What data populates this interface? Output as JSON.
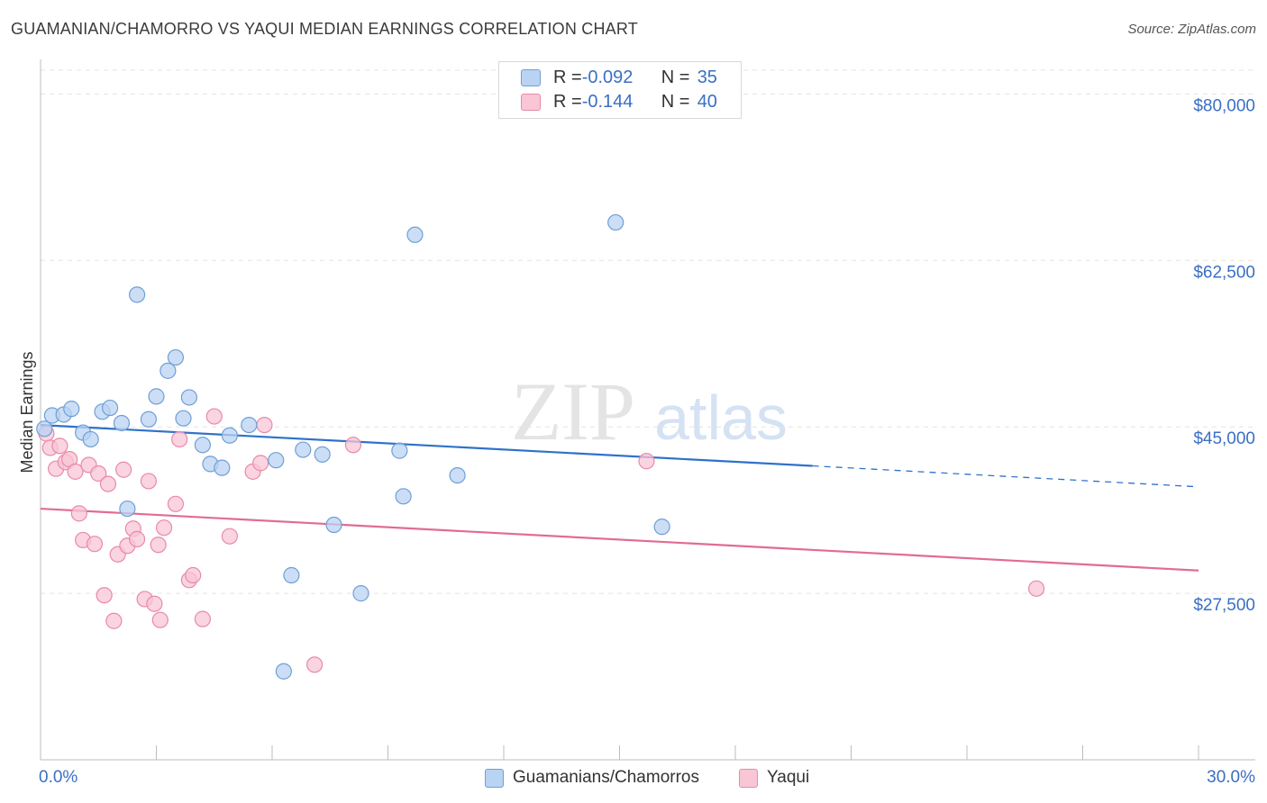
{
  "header": {
    "title": "GUAMANIAN/CHAMORRO VS YAQUI MEDIAN EARNINGS CORRELATION CHART",
    "source": "Source: ZipAtlas.com"
  },
  "watermark": {
    "zip": "ZIP",
    "atlas": "atlas"
  },
  "colors": {
    "blue_fill": "#b9d3f2",
    "blue_stroke": "#6f9fd8",
    "blue_line": "#2f72c9",
    "pink_fill": "#f8c6d5",
    "pink_stroke": "#e88aa8",
    "pink_line": "#e26b94",
    "axis_label": "#3a6fc4"
  },
  "legend": {
    "rows": [
      {
        "r_label": "R = ",
        "r_value": "-0.092",
        "n_label": "N = ",
        "n_value": "35"
      },
      {
        "r_label": "R = ",
        "r_value": "-0.144",
        "n_label": "N = ",
        "n_value": "40"
      }
    ],
    "bottom": [
      "Guamanians/Chamorros",
      "Yaqui"
    ]
  },
  "chart_data": {
    "type": "scatter",
    "title": "GUAMANIAN/CHAMORRO VS YAQUI MEDIAN EARNINGS CORRELATION CHART",
    "xlabel": "",
    "ylabel": "Median Earnings",
    "xlim": [
      0,
      30
    ],
    "ylim": [
      10000,
      82500
    ],
    "x_tick_labels": [
      "0.0%",
      "30.0%"
    ],
    "y_ticks": [
      27500,
      45000,
      62500,
      80000
    ],
    "y_tick_labels": [
      "$27,500",
      "$45,000",
      "$62,500",
      "$80,000"
    ],
    "grid": true,
    "series": [
      {
        "name": "Guamanians/Chamorros",
        "R": -0.092,
        "N": 35,
        "trend": {
          "x0": 0,
          "y0": 45200,
          "x1": 20,
          "y1": 40900,
          "dash_to_x": 30,
          "dash_to_y": 38700
        },
        "points": [
          [
            0.1,
            44800
          ],
          [
            0.3,
            46200
          ],
          [
            0.6,
            46300
          ],
          [
            0.8,
            46900
          ],
          [
            1.1,
            44400
          ],
          [
            1.3,
            43700
          ],
          [
            1.6,
            46600
          ],
          [
            1.8,
            47000
          ],
          [
            2.1,
            45400
          ],
          [
            2.25,
            36400
          ],
          [
            2.5,
            58900
          ],
          [
            2.8,
            45800
          ],
          [
            3.0,
            48200
          ],
          [
            3.3,
            50900
          ],
          [
            3.5,
            52300
          ],
          [
            3.7,
            45900
          ],
          [
            3.85,
            48100
          ],
          [
            4.2,
            43100
          ],
          [
            4.4,
            41100
          ],
          [
            4.7,
            40700
          ],
          [
            4.9,
            44100
          ],
          [
            5.4,
            45200
          ],
          [
            6.1,
            41500
          ],
          [
            6.5,
            29400
          ],
          [
            6.8,
            42600
          ],
          [
            7.3,
            42100
          ],
          [
            7.6,
            34700
          ],
          [
            8.3,
            27500
          ],
          [
            9.3,
            42500
          ],
          [
            9.4,
            37700
          ],
          [
            9.7,
            65200
          ],
          [
            10.8,
            39900
          ],
          [
            14.9,
            66500
          ],
          [
            16.1,
            34500
          ],
          [
            6.3,
            19300
          ]
        ]
      },
      {
        "name": "Yaqui",
        "R": -0.144,
        "N": 40,
        "trend": {
          "x0": 0,
          "y0": 36400,
          "x1": 30,
          "y1": 29900
        },
        "points": [
          [
            0.15,
            44300
          ],
          [
            0.25,
            42800
          ],
          [
            0.4,
            40600
          ],
          [
            0.5,
            43000
          ],
          [
            0.65,
            41300
          ],
          [
            0.75,
            41600
          ],
          [
            0.9,
            40300
          ],
          [
            1.0,
            35900
          ],
          [
            1.1,
            33100
          ],
          [
            1.25,
            41000
          ],
          [
            1.4,
            32700
          ],
          [
            1.5,
            40100
          ],
          [
            1.65,
            27300
          ],
          [
            1.75,
            39000
          ],
          [
            1.9,
            24600
          ],
          [
            2.0,
            31600
          ],
          [
            2.15,
            40500
          ],
          [
            2.25,
            32500
          ],
          [
            2.4,
            34300
          ],
          [
            2.5,
            33200
          ],
          [
            2.7,
            26900
          ],
          [
            2.8,
            39300
          ],
          [
            2.95,
            26400
          ],
          [
            3.05,
            32600
          ],
          [
            3.1,
            24700
          ],
          [
            3.2,
            34400
          ],
          [
            3.5,
            36900
          ],
          [
            3.6,
            43700
          ],
          [
            3.85,
            28900
          ],
          [
            3.95,
            29400
          ],
          [
            4.2,
            24800
          ],
          [
            4.5,
            46100
          ],
          [
            4.9,
            33500
          ],
          [
            5.5,
            40300
          ],
          [
            5.7,
            41200
          ],
          [
            5.8,
            45200
          ],
          [
            7.1,
            20000
          ],
          [
            8.1,
            43100
          ],
          [
            15.7,
            41400
          ],
          [
            25.8,
            28000
          ]
        ]
      }
    ]
  }
}
